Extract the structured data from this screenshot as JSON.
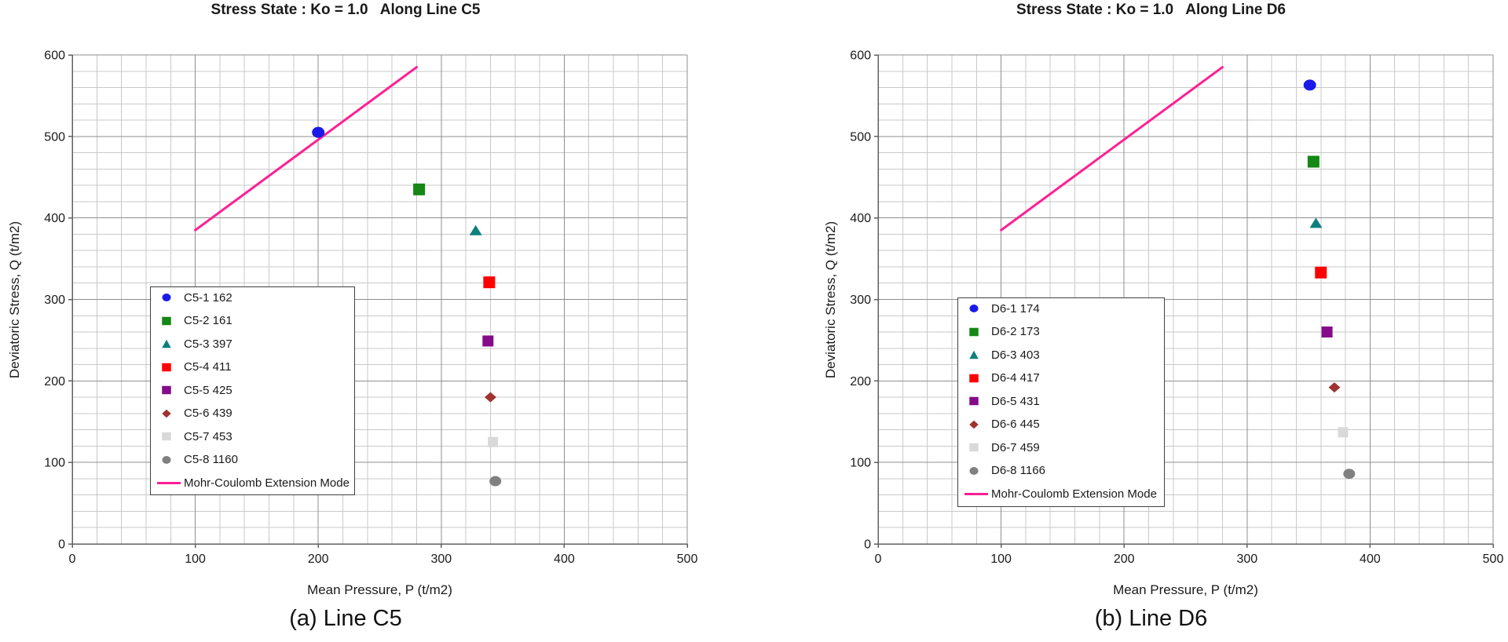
{
  "figure": {
    "background": "#ffffff",
    "grid_minor_color": "#c9c9c9",
    "grid_major_color": "#8f8f8f",
    "axis_color": "#606060"
  },
  "chart_data": [
    {
      "type": "scatter",
      "title": "Stress State : Ko = 1.0   Along Line C5",
      "caption": "(a) Line C5",
      "xlabel": "Mean Pressure, P (t/m2)",
      "ylabel": "Deviatoric Stress, Q (t/m2)",
      "xlim": [
        0,
        500
      ],
      "ylim": [
        0,
        600
      ],
      "xticks": [
        0,
        100,
        200,
        300,
        400,
        500
      ],
      "yticks": [
        0,
        100,
        200,
        300,
        400,
        500,
        600
      ],
      "minor_grid_step": 20,
      "grid": "on",
      "legend_position": "inside-lower-left",
      "series": [
        {
          "name": "C5-1 162",
          "marker": "circle",
          "color": "#1a1ae8",
          "size": [
            16,
            14
          ],
          "x": 200,
          "y": 505
        },
        {
          "name": "C5-2 161",
          "marker": "square",
          "color": "#148714",
          "size": [
            15,
            15
          ],
          "x": 282,
          "y": 435
        },
        {
          "name": "C5-3 397",
          "marker": "triangle",
          "color": "#0e7f7f",
          "size": [
            16,
            13
          ],
          "x": 328,
          "y": 385
        },
        {
          "name": "C5-4 411",
          "marker": "square",
          "color": "#fe0000",
          "size": [
            15,
            15
          ],
          "x": 339,
          "y": 321
        },
        {
          "name": "C5-5 425",
          "marker": "square",
          "color": "#850b8a",
          "size": [
            14,
            14
          ],
          "x": 338,
          "y": 249
        },
        {
          "name": "C5-6 439",
          "marker": "diamond",
          "color": "#a03232",
          "size": [
            15,
            13
          ],
          "x": 340,
          "y": 180
        },
        {
          "name": "C5-7 453",
          "marker": "square",
          "color": "#d9d9d9",
          "size": [
            13,
            13
          ],
          "x": 342,
          "y": 125
        },
        {
          "name": "C5-8 1160",
          "marker": "circle",
          "color": "#808080",
          "size": [
            15,
            13
          ],
          "x": 344,
          "y": 77
        }
      ],
      "mc_line": {
        "name": "Mohr-Coulomb  Extension Mode",
        "color": "#ff1f93",
        "points": [
          [
            100,
            385
          ],
          [
            280,
            585
          ]
        ]
      }
    },
    {
      "type": "scatter",
      "title": "Stress State : Ko = 1.0   Along Line D6",
      "caption": "(b) Line D6",
      "xlabel": "Mean Pressure, P (t/m2)",
      "ylabel": "Deviatoric Stress, Q (t/m2)",
      "xlim": [
        0,
        500
      ],
      "ylim": [
        0,
        600
      ],
      "xticks": [
        0,
        100,
        200,
        300,
        400,
        500
      ],
      "yticks": [
        0,
        100,
        200,
        300,
        400,
        500,
        600
      ],
      "minor_grid_step": 20,
      "grid": "on",
      "legend_position": "inside-lower-left",
      "series": [
        {
          "name": "D6-1 174",
          "marker": "circle",
          "color": "#1a1ae8",
          "size": [
            16,
            14
          ],
          "x": 351,
          "y": 563
        },
        {
          "name": "D6-2 173",
          "marker": "square",
          "color": "#148714",
          "size": [
            15,
            15
          ],
          "x": 354,
          "y": 469
        },
        {
          "name": "D6-3 403",
          "marker": "triangle",
          "color": "#0e7f7f",
          "size": [
            16,
            13
          ],
          "x": 356,
          "y": 394
        },
        {
          "name": "D6-4 417",
          "marker": "square",
          "color": "#fe0000",
          "size": [
            15,
            15
          ],
          "x": 360,
          "y": 333
        },
        {
          "name": "D6-5 431",
          "marker": "square",
          "color": "#850b8a",
          "size": [
            14,
            14
          ],
          "x": 365,
          "y": 260
        },
        {
          "name": "D6-6 445",
          "marker": "diamond",
          "color": "#a03232",
          "size": [
            15,
            13
          ],
          "x": 371,
          "y": 192
        },
        {
          "name": "D6-7 459",
          "marker": "square",
          "color": "#d9d9d9",
          "size": [
            13,
            13
          ],
          "x": 378,
          "y": 137
        },
        {
          "name": "D6-8 1166",
          "marker": "circle",
          "color": "#808080",
          "size": [
            15,
            13
          ],
          "x": 383,
          "y": 86
        }
      ],
      "mc_line": {
        "name": "Mohr-Coulomb  Extension Mode",
        "color": "#ff1f93",
        "points": [
          [
            100,
            385
          ],
          [
            280,
            585
          ]
        ]
      }
    }
  ]
}
